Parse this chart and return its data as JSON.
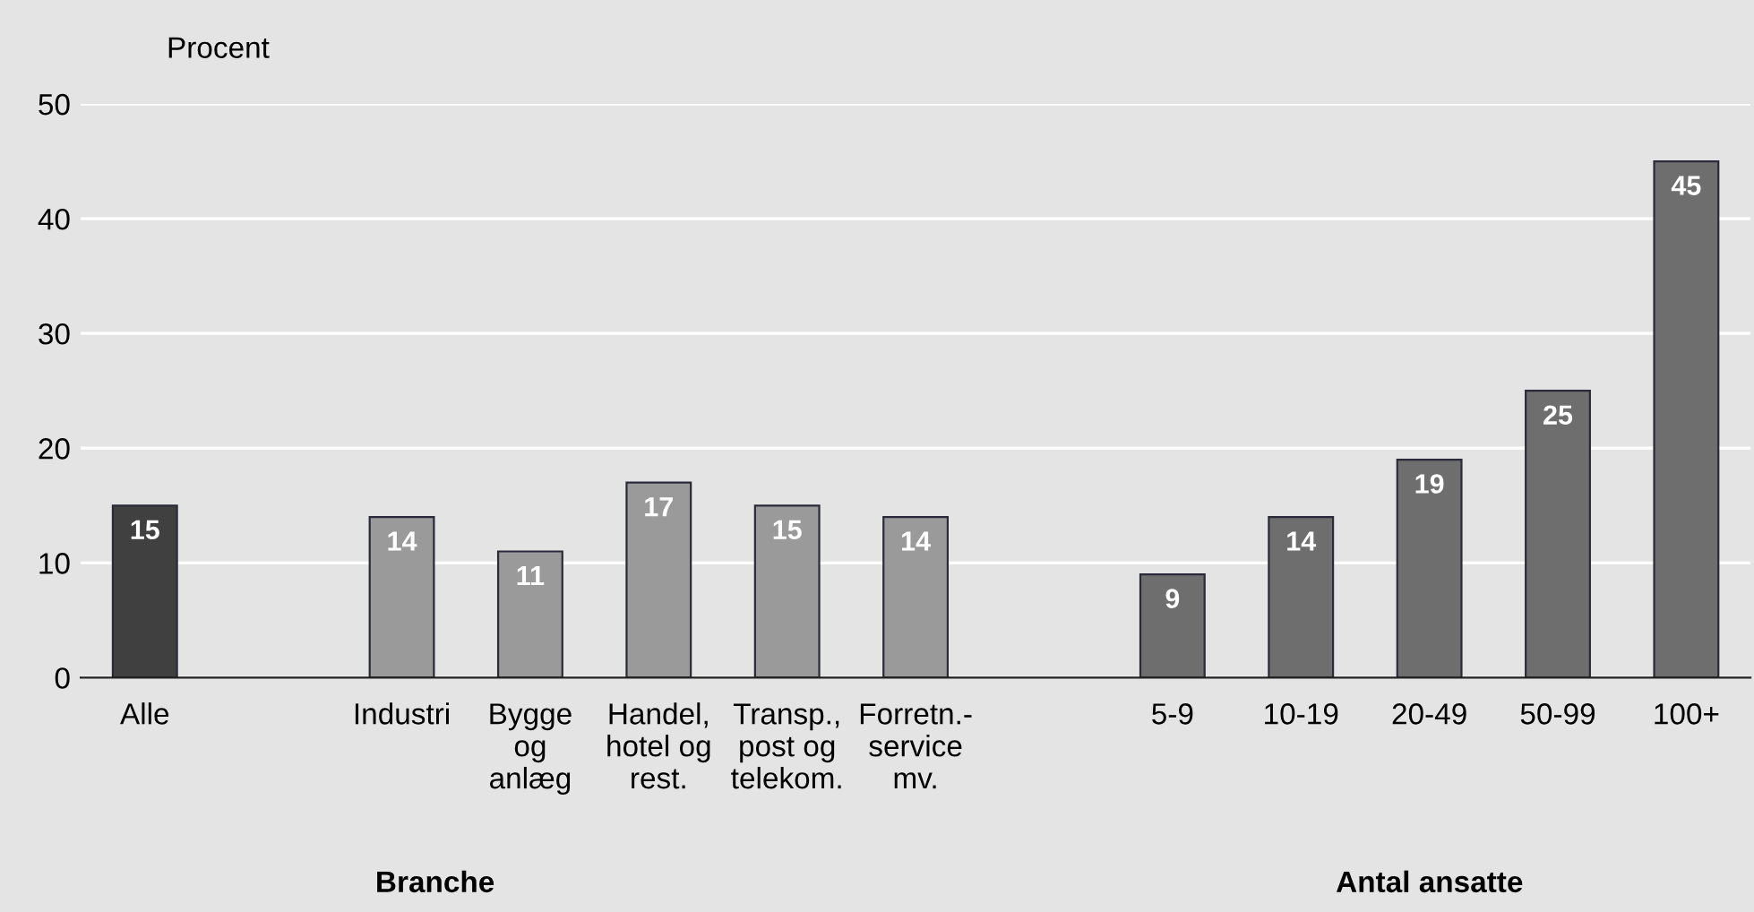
{
  "chart_data": {
    "type": "bar",
    "ylabel": "Procent",
    "categories": [
      "Alle",
      null,
      "Industri",
      "Bygge\nog\nanlæg",
      "Handel,\nhotel og\nrest.",
      "Transp.,\npost og\ntelekom.",
      "Forretn.-\nservice\nmv.",
      null,
      "5-9",
      "10-19",
      "20-49",
      "50-99",
      "100+"
    ],
    "values": [
      15,
      null,
      14,
      11,
      17,
      15,
      14,
      null,
      9,
      14,
      19,
      25,
      45
    ],
    "colors": [
      "#404040",
      null,
      "#9a9a9a",
      "#9a9a9a",
      "#9a9a9a",
      "#9a9a9a",
      "#9a9a9a",
      null,
      "#6e6e6e",
      "#6e6e6e",
      "#6e6e6e",
      "#6e6e6e",
      "#6e6e6e"
    ],
    "ylim": [
      0,
      50
    ],
    "yticks": [
      0,
      10,
      20,
      30,
      40,
      50
    ],
    "grid": "y",
    "data_labels": true,
    "annotations": [
      "Branche",
      "Antal ansatte"
    ]
  }
}
